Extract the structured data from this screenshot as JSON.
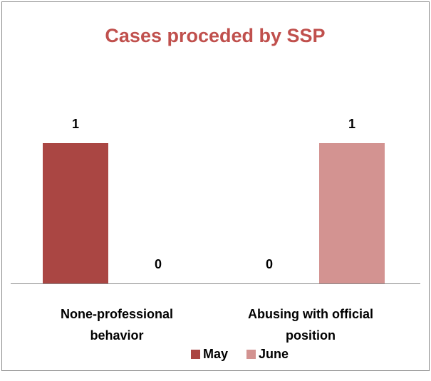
{
  "chart_data": {
    "type": "bar",
    "title": "Cases proceded by SSP",
    "categories": [
      "None-professional behavior",
      "Abusing with official position"
    ],
    "series": [
      {
        "name": "May",
        "color": "#aa4643",
        "values": [
          1,
          0
        ]
      },
      {
        "name": "June",
        "color": "#d39391",
        "values": [
          0,
          1
        ]
      }
    ],
    "legend": "bottom"
  }
}
